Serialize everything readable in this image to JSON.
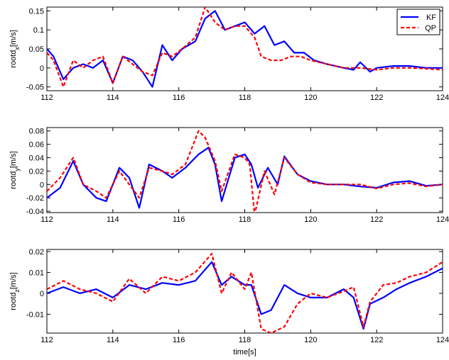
{
  "chart_data": [
    {
      "type": "line",
      "ylabel": "rootd_x[m/s]",
      "xlabel": "",
      "xlim": [
        112,
        124
      ],
      "ylim": [
        -0.06,
        0.16
      ],
      "xticks": [
        "112",
        "114",
        "116",
        "118",
        "120",
        "122",
        "124"
      ],
      "yticks": [
        "-0.05",
        "0",
        "0.05",
        "0.1",
        "0.15"
      ],
      "legend": {
        "position": "top-right",
        "entries": [
          "KF",
          "QP"
        ]
      },
      "series": [
        {
          "name": "KF",
          "color": "#0000ff",
          "style": "solid",
          "x": [
            112,
            112.2,
            112.5,
            112.8,
            113.1,
            113.4,
            113.7,
            114,
            114.3,
            114.6,
            114.9,
            115.2,
            115.5,
            115.8,
            116.1,
            116.5,
            116.8,
            117.1,
            117.4,
            117.7,
            118,
            118.3,
            118.6,
            118.9,
            119.2,
            119.5,
            119.8,
            120.1,
            120.5,
            121,
            121.3,
            121.5,
            121.8,
            122,
            122.5,
            123,
            123.5,
            124
          ],
          "y": [
            0.05,
            0.03,
            -0.03,
            0.0,
            0.01,
            0.0,
            0.02,
            -0.04,
            0.03,
            0.02,
            -0.01,
            -0.05,
            0.06,
            0.02,
            0.05,
            0.07,
            0.13,
            0.15,
            0.1,
            0.11,
            0.12,
            0.09,
            0.11,
            0.06,
            0.07,
            0.04,
            0.04,
            0.02,
            0.01,
            0.0,
            -0.005,
            0.015,
            -0.01,
            0.0,
            0.005,
            0.005,
            0.0,
            0.0
          ]
        },
        {
          "name": "QP",
          "color": "#ff0000",
          "style": "dashed",
          "x": [
            112,
            112.2,
            112.5,
            112.8,
            113.1,
            113.4,
            113.7,
            114,
            114.3,
            114.6,
            114.9,
            115.2,
            115.5,
            115.8,
            116.1,
            116.5,
            116.8,
            117.1,
            117.4,
            117.7,
            118,
            118.3,
            118.5,
            118.8,
            119.1,
            119.4,
            119.7,
            120,
            120.5,
            121,
            121.5,
            122,
            122.5,
            123,
            123.5,
            124
          ],
          "y": [
            0.04,
            0.02,
            -0.05,
            0.02,
            0.0,
            0.02,
            0.03,
            -0.04,
            0.03,
            0.01,
            -0.01,
            -0.02,
            0.04,
            0.03,
            0.05,
            0.08,
            0.16,
            0.12,
            0.1,
            0.11,
            0.11,
            0.08,
            0.03,
            0.02,
            0.02,
            0.03,
            0.03,
            0.02,
            0.01,
            0.0,
            0.0,
            -0.005,
            0.0,
            0.0,
            -0.002,
            -0.005
          ]
        }
      ]
    },
    {
      "type": "line",
      "ylabel": "rootd_y[m/s]",
      "xlabel": "",
      "xlim": [
        112,
        124
      ],
      "ylim": [
        -0.042,
        0.085
      ],
      "xticks": [
        "112",
        "114",
        "116",
        "118",
        "120",
        "122",
        "124"
      ],
      "yticks": [
        "-0.04",
        "-0.02",
        "0",
        "0.02",
        "0.04",
        "0.06",
        "0.08"
      ],
      "series": [
        {
          "name": "KF",
          "color": "#0000ff",
          "style": "solid",
          "x": [
            112,
            112.4,
            112.8,
            113.1,
            113.5,
            113.8,
            114.2,
            114.5,
            114.8,
            115.1,
            115.5,
            115.8,
            116.2,
            116.6,
            116.9,
            117.1,
            117.3,
            117.7,
            118,
            118.2,
            118.4,
            118.7,
            119,
            119.2,
            119.6,
            120,
            120.5,
            121,
            121.5,
            122,
            122.5,
            123,
            123.5,
            124
          ],
          "y": [
            -0.02,
            -0.005,
            0.035,
            0.0,
            -0.02,
            -0.025,
            0.025,
            0.01,
            -0.035,
            0.03,
            0.02,
            0.01,
            0.025,
            0.045,
            0.055,
            0.03,
            -0.025,
            0.04,
            0.045,
            0.03,
            -0.005,
            0.025,
            0.0,
            0.042,
            0.015,
            0.005,
            0.0,
            0.0,
            -0.003,
            -0.005,
            0.003,
            0.005,
            -0.002,
            0.0
          ]
        },
        {
          "name": "QP",
          "color": "#ff0000",
          "style": "dashed",
          "x": [
            112,
            112.4,
            112.8,
            113.1,
            113.5,
            113.8,
            114.2,
            114.5,
            114.8,
            115.1,
            115.5,
            115.8,
            116.2,
            116.6,
            116.8,
            117.1,
            117.3,
            117.7,
            118,
            118.15,
            118.3,
            118.6,
            118.9,
            119.2,
            119.6,
            120,
            120.5,
            121,
            121.5,
            122,
            122.5,
            123,
            123.5,
            124
          ],
          "y": [
            -0.01,
            0.01,
            0.04,
            0.0,
            -0.01,
            -0.02,
            0.02,
            0.0,
            -0.02,
            0.025,
            0.02,
            0.015,
            0.03,
            0.08,
            0.07,
            0.035,
            -0.01,
            0.045,
            0.04,
            0.03,
            -0.045,
            0.02,
            -0.015,
            0.04,
            0.015,
            0.003,
            0.0,
            0.0,
            0.0,
            -0.006,
            0.0,
            0.002,
            -0.003,
            0.0
          ]
        }
      ]
    },
    {
      "type": "line",
      "ylabel": "rootd_z[m/s]",
      "xlabel": "time[s]",
      "xlim": [
        112,
        124
      ],
      "ylim": [
        -0.019,
        0.021
      ],
      "xticks": [
        "112",
        "114",
        "116",
        "118",
        "120",
        "122",
        "124"
      ],
      "yticks": [
        "-0.01",
        "0",
        "0.01",
        "0.02"
      ],
      "series": [
        {
          "name": "KF",
          "color": "#0000ff",
          "style": "solid",
          "x": [
            112,
            112.5,
            113,
            113.5,
            114,
            114.5,
            115,
            115.5,
            116,
            116.5,
            117,
            117.3,
            117.6,
            118,
            118.2,
            118.5,
            118.8,
            119.2,
            119.6,
            120,
            120.5,
            121,
            121.3,
            121.6,
            121.8,
            122.2,
            122.6,
            123,
            123.5,
            124
          ],
          "y": [
            0.0,
            0.003,
            0.0,
            0.002,
            -0.002,
            0.004,
            0.002,
            0.005,
            0.004,
            0.006,
            0.015,
            0.004,
            0.008,
            0.004,
            0.004,
            -0.01,
            -0.008,
            0.004,
            0.0,
            -0.002,
            -0.002,
            0.002,
            -0.002,
            -0.017,
            -0.005,
            -0.002,
            0.002,
            0.005,
            0.008,
            0.012
          ]
        },
        {
          "name": "QP",
          "color": "#ff0000",
          "style": "dashed",
          "x": [
            112,
            112.5,
            113,
            113.5,
            114,
            114.5,
            115,
            115.5,
            116,
            116.5,
            117,
            117.3,
            117.6,
            118,
            118.2,
            118.5,
            118.8,
            119.2,
            119.6,
            120,
            120.5,
            121,
            121.3,
            121.6,
            121.8,
            122.2,
            122.6,
            123,
            123.5,
            124
          ],
          "y": [
            0.002,
            0.006,
            0.002,
            0.0,
            -0.004,
            0.007,
            0.0,
            0.008,
            0.006,
            0.01,
            0.019,
            0.0,
            0.01,
            0.002,
            0.01,
            -0.017,
            -0.019,
            -0.016,
            -0.005,
            0.0,
            -0.002,
            0.001,
            0.003,
            -0.016,
            -0.004,
            0.004,
            0.005,
            0.008,
            0.01,
            0.015
          ]
        }
      ]
    }
  ]
}
